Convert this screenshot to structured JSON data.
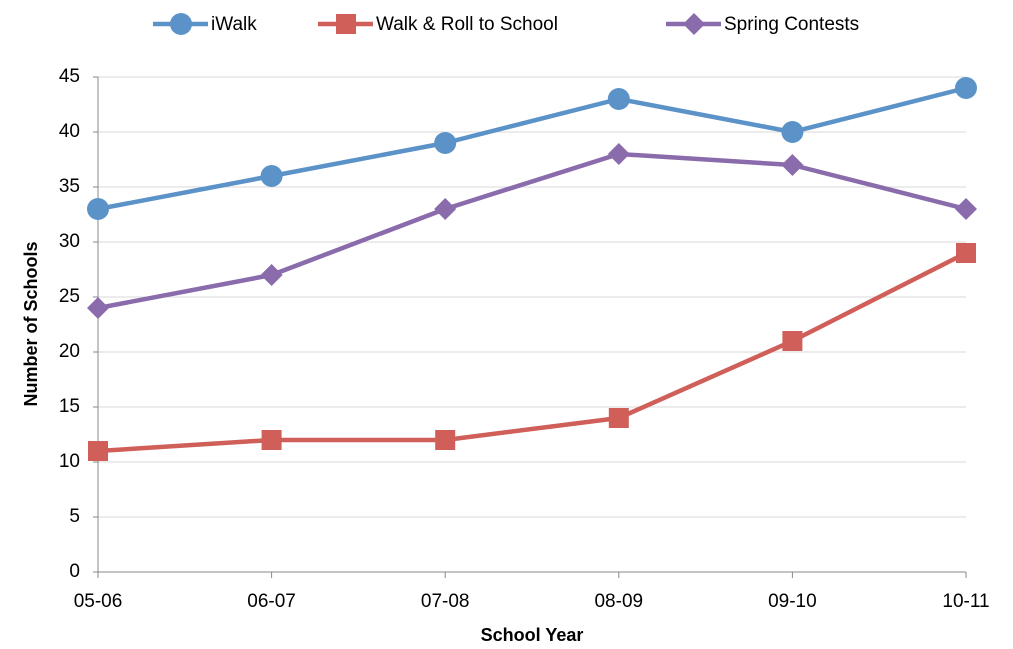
{
  "chart_data": {
    "type": "line",
    "x_label": "School Year",
    "y_label": "Number of Schools",
    "categories": [
      "05-06",
      "06-07",
      "07-08",
      "08-09",
      "09-10",
      "10-11"
    ],
    "series": [
      {
        "name": "iWalk",
        "color": "#5b93c9",
        "marker": "circle",
        "values": [
          33,
          36,
          39,
          43,
          40,
          44
        ]
      },
      {
        "name": "Walk & Roll to School",
        "color": "#cf5f58",
        "marker": "square",
        "values": [
          11,
          12,
          12,
          14,
          21,
          29
        ]
      },
      {
        "name": "Spring Contests",
        "color": "#8a6bab",
        "marker": "diamond",
        "values": [
          24,
          27,
          33,
          38,
          37,
          33
        ]
      }
    ],
    "ylim": [
      0,
      45
    ],
    "yticks": [
      0,
      5,
      10,
      15,
      20,
      25,
      30,
      35,
      40,
      45
    ],
    "grid": true,
    "legend": "top"
  }
}
